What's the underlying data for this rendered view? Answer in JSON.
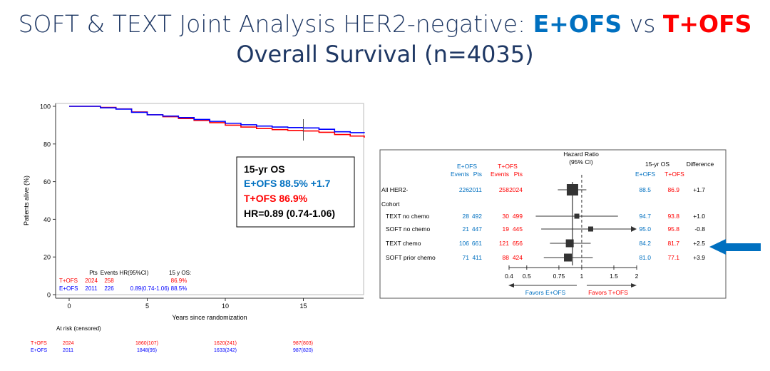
{
  "slide": {
    "title_prefix": "SOFT & TEXT Joint Analysis HER2-negative: ",
    "title_e": "E+OFS",
    "title_vs": " vs ",
    "title_t": "T+OFS",
    "subtitle": "Overall Survival (n=4035)",
    "colors": {
      "title": "#1f3864",
      "e_ofs": "#0070c0",
      "t_ofs": "#ff0000",
      "km_blue": "#0000ff",
      "km_red": "#ff0000",
      "arrow": "#0070c0"
    }
  },
  "chart_data": [
    {
      "type": "line",
      "xlabel": "Years since randomization",
      "ylabel": "Patients alive (%)",
      "xlim": [
        0,
        18.9
      ],
      "ylim": [
        0,
        100
      ],
      "xticks": [
        "0",
        "5",
        "10",
        "15"
      ],
      "yticks": [
        "0",
        "20",
        "40",
        "60",
        "80",
        "100"
      ],
      "series": [
        {
          "name": "E+OFS",
          "color": "#0000ff",
          "x": [
            0,
            1,
            2,
            3,
            4,
            5,
            6,
            7,
            8,
            9,
            10,
            11,
            12,
            13,
            14,
            15,
            16,
            17,
            18,
            18.9
          ],
          "y": [
            100,
            100,
            99.2,
            98.5,
            96.8,
            95.5,
            94.8,
            94,
            93,
            92,
            91,
            90.2,
            89.5,
            89,
            88.7,
            88.5,
            87.8,
            86.5,
            86,
            85.8
          ]
        },
        {
          "name": "T+OFS",
          "color": "#ff0000",
          "x": [
            0,
            1,
            2,
            3,
            4,
            5,
            6,
            7,
            8,
            9,
            10,
            11,
            12,
            13,
            14,
            15,
            16,
            17,
            18,
            18.9
          ],
          "y": [
            100,
            100,
            99.4,
            98.6,
            97,
            95.5,
            94.5,
            93.5,
            92.5,
            91.3,
            90,
            89,
            88.2,
            87.6,
            87.2,
            86.9,
            86.2,
            85,
            84.2,
            83.4
          ]
        }
      ],
      "annotation_box": {
        "title": "15-yr OS",
        "e_label": "E+OFS",
        "e_value": "88.5%",
        "e_diff": "+1.7",
        "t_label": "T+OFS",
        "t_value": "86.9%",
        "hr": "HR=0.89 (0.74-1.06)"
      },
      "inset_table": {
        "headers": [
          "Pts",
          "Events",
          "HR(95%CI)",
          "15 y OS:"
        ],
        "rows": [
          {
            "arm": "T+OFS",
            "pts": "2024",
            "events": "258",
            "hr": "",
            "os": "86.9%"
          },
          {
            "arm": "E+OFS",
            "pts": "2011",
            "events": "226",
            "hr": "0.89(0.74-1.06)",
            "os": "88.5%"
          }
        ]
      },
      "at_risk": {
        "label": "At risk (censored)",
        "rows": [
          {
            "arm": "T+OFS",
            "values": [
              "2024",
              "1860(107)",
              "1620(241)",
              "987(803)"
            ]
          },
          {
            "arm": "E+OFS",
            "values": [
              "2011",
              "1848(95)",
              "1633(242)",
              "987(820)"
            ]
          }
        ]
      }
    },
    {
      "type": "forest",
      "x_scale": "log",
      "xlim": [
        0.4,
        2
      ],
      "xticks": [
        "0.4",
        "0.5",
        "0.75",
        "1",
        "1.5",
        "2"
      ],
      "header": {
        "hr": "Hazard Ratio",
        "ci": "(95% CI)",
        "e_arm": "E+OFS",
        "t_arm": "T+OFS",
        "events": "Events",
        "pts": "Pts",
        "os": "15-yr OS",
        "diff": "Difference"
      },
      "favors_e": "Favors E+OFS",
      "favors_t": "Favors T+OFS",
      "cohort_label": "Cohort",
      "overall_hr": 0.89,
      "rows": [
        {
          "label": "All HER2-",
          "e_events": "226",
          "e_pts": "2011",
          "t_events": "258",
          "t_pts": "2024",
          "hr": 0.89,
          "lo": 0.74,
          "hi": 1.06,
          "e_os": "88.5",
          "t_os": "86.9",
          "diff": "+1.7",
          "indent": false
        },
        {
          "label": "TEXT no chemo",
          "e_events": "28",
          "e_pts": "492",
          "t_events": "30",
          "t_pts": "499",
          "hr": 0.94,
          "lo": 0.56,
          "hi": 1.58,
          "e_os": "94.7",
          "t_os": "93.8",
          "diff": "+1.0",
          "indent": true
        },
        {
          "label": "SOFT no chemo",
          "e_events": "21",
          "e_pts": "447",
          "t_events": "19",
          "t_pts": "445",
          "hr": 1.12,
          "lo": 0.6,
          "hi": 2.3,
          "e_os": "95.0",
          "t_os": "95.8",
          "diff": "-0.8",
          "indent": true
        },
        {
          "label": "TEXT chemo",
          "e_events": "106",
          "e_pts": "661",
          "t_events": "121",
          "t_pts": "656",
          "hr": 0.86,
          "lo": 0.67,
          "hi": 1.12,
          "e_os": "84.2",
          "t_os": "81.7",
          "diff": "+2.5",
          "indent": true
        },
        {
          "label": "SOFT prior chemo",
          "e_events": "71",
          "e_pts": "411",
          "t_events": "88",
          "t_pts": "424",
          "hr": 0.84,
          "lo": 0.62,
          "hi": 1.15,
          "e_os": "81.0",
          "t_os": "77.1",
          "diff": "+3.9",
          "indent": true
        }
      ]
    }
  ]
}
